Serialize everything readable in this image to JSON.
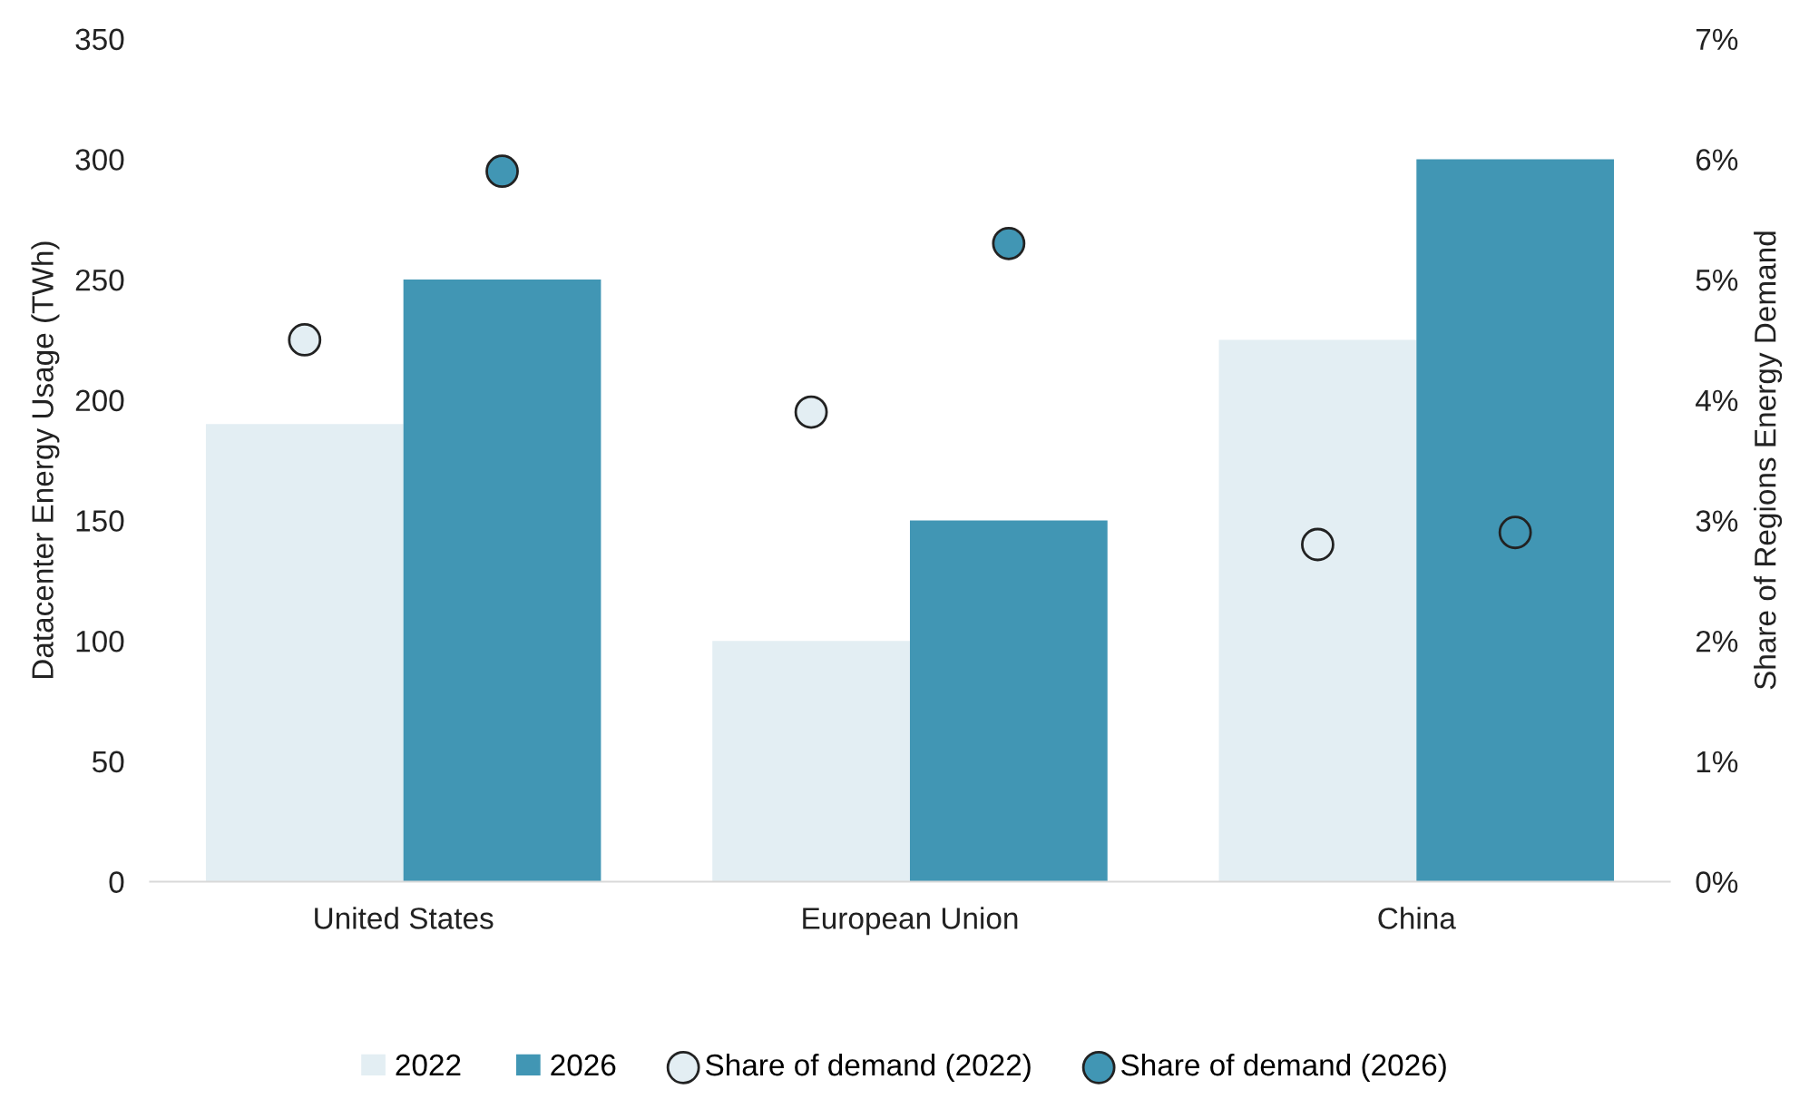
{
  "chart_data": {
    "type": "bar",
    "ylabel": "Datacenter Energy Usage (TWh)",
    "y2label": "Share of Regions Energy Demand",
    "categories": [
      "United States",
      "European Union",
      "China"
    ],
    "series": [
      {
        "name": "2022",
        "color": "#e3eef3",
        "values": [
          190,
          100,
          225
        ]
      },
      {
        "name": "2026",
        "color": "#4196b4",
        "values": [
          250,
          150,
          300
        ]
      },
      {
        "name": "Share of demand (2022)",
        "type": "scatter",
        "axis": "y2",
        "color": "#e3eef3",
        "x": [
          "United States",
          "European Union",
          "China"
        ],
        "values": [
          4.5,
          3.9,
          2.8
        ]
      },
      {
        "name": "Share of demand (2026)",
        "type": "scatter",
        "axis": "y2",
        "color": "#4196b4",
        "x": [
          "United States",
          "European Union",
          "China"
        ],
        "values": [
          5.9,
          5.3,
          2.9
        ]
      }
    ],
    "ylim": [
      0,
      350
    ],
    "yticks": [
      0,
      50,
      100,
      150,
      200,
      250,
      300,
      350
    ],
    "y2lim": [
      0,
      7
    ],
    "y2ticks": [
      {
        "value": 0,
        "label": "0%"
      },
      {
        "value": 1,
        "label": "1%"
      },
      {
        "value": 2,
        "label": "2%"
      },
      {
        "value": 3,
        "label": "3%"
      },
      {
        "value": 4,
        "label": "4%"
      },
      {
        "value": 5,
        "label": "5%"
      },
      {
        "value": 6,
        "label": "6%"
      },
      {
        "value": 7,
        "label": "7%"
      }
    ],
    "marker": "circle",
    "grid": false,
    "legend": "bottom"
  }
}
